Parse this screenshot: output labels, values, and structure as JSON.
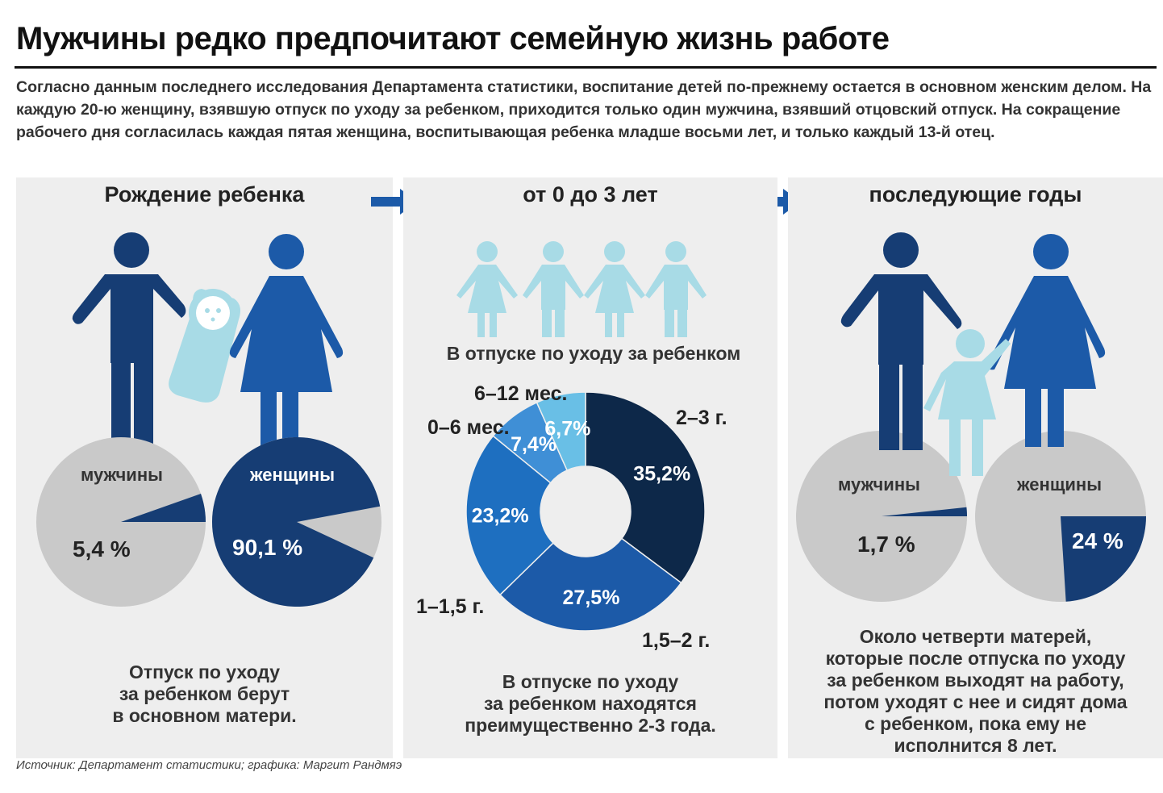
{
  "title": "Мужчины редко предпочитают семейную жизнь работе",
  "intro": "Согласно данным последнего исследования Департамента статистики, воспитание детей по-прежнему остается в основном женским делом. На каждую 20-ю женщину, взявшую отпуск по уходу за ребенком, приходится только один мужчина, взявший отцовский отпуск. На сокращение рабочего дня согласилась каждая пятая женщина, воспитывающая ребенка младше восьми лет, и только каждый 13-й отец.",
  "panels": {
    "birth": {
      "title": "Рождение ребенка",
      "caption": [
        "Отпуск по уходу",
        "за ребенком берут",
        "в основном матери."
      ]
    },
    "age0to3": {
      "title": "от 0 до 3 лет",
      "subtitle": "В отпуске по уходу за ребенком",
      "caption": [
        "В отпуске по уходу",
        "за ребенком находятся",
        "преимущественно 2-3 года."
      ]
    },
    "later": {
      "title": "последующие годы",
      "caption": [
        "Около четверти матерей,",
        "которые после отпуска по уходу",
        "за ребенком выходят на работу,",
        "потом уходят с нее и сидят дома",
        "с ребенком, пока ему не",
        "исполнится 8 лет."
      ]
    }
  },
  "source": "Источник: Департамент статистики; графика: Маргит Рандмяэ",
  "colors": {
    "navy": "#163d74",
    "blue": "#1c5aa8",
    "mid": "#1e6fc0",
    "dark": "#0d2849",
    "light": "#69bfe6",
    "child": "#a8dbe6",
    "grey": "#c9c9c9",
    "panel": "#eeeeee"
  },
  "chart_data": [
    {
      "type": "pie",
      "title": "Рождение ребенка",
      "series": [
        {
          "name": "мужчины",
          "value": 5.4,
          "label": "5,4 %"
        },
        {
          "name": "женщины",
          "value": 90.1,
          "label": "90,1 %"
        }
      ]
    },
    {
      "type": "pie",
      "title": "В отпуске по уходу за ребенком",
      "donut": true,
      "categories": [
        "2–3 г.",
        "1,5–2 г.",
        "1–1,5 г.",
        "0–6 мес.",
        "6–12 мес."
      ],
      "values": [
        35.2,
        27.5,
        23.2,
        7.4,
        6.7
      ],
      "value_labels": [
        "35,2%",
        "27,5%",
        "23,2%",
        "7,4%",
        "6,7%"
      ]
    },
    {
      "type": "pie",
      "title": "последующие годы",
      "series": [
        {
          "name": "мужчины",
          "value": 1.7,
          "label": "1,7 %"
        },
        {
          "name": "женщины",
          "value": 24,
          "label": "24 %"
        }
      ]
    }
  ]
}
